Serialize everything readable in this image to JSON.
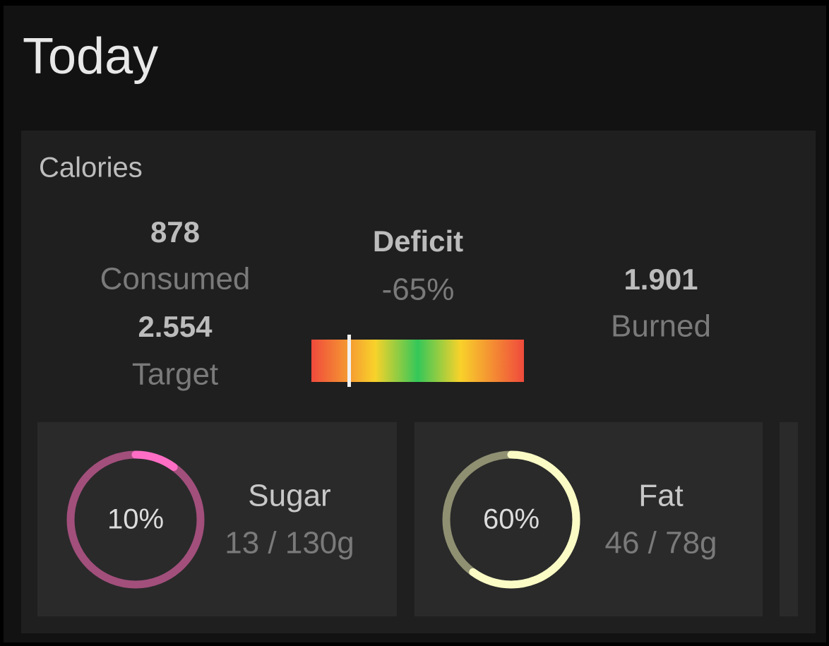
{
  "header": {
    "title": "Today"
  },
  "calories": {
    "title": "Calories",
    "consumed": {
      "value": "878",
      "label": "Consumed"
    },
    "target": {
      "value": "2.554",
      "label": "Target"
    },
    "deficit": {
      "label": "Deficit",
      "value": "-65%"
    },
    "burned": {
      "value": "1.901",
      "label": "Burned"
    }
  },
  "macros": [
    {
      "name": "Sugar",
      "percent": 10,
      "percent_label": "10%",
      "amount": "13 / 130g",
      "color": "#ff6ec4",
      "track_color": "#a24f7c"
    },
    {
      "name": "Fat",
      "percent": 60,
      "percent_label": "60%",
      "amount": "46 / 78g",
      "color": "#fbfbc6",
      "track_color": "#8f8f72"
    }
  ]
}
